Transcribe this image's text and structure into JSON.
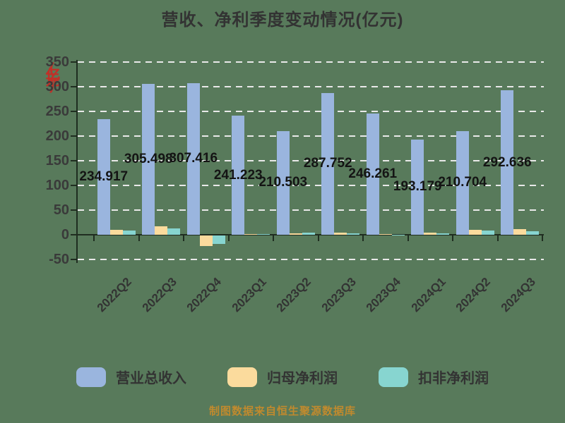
{
  "title": "营收、净利季度变动情况(亿元)",
  "y_axis": {
    "unit_label": "(亿元)",
    "unit_label_color": "#C03028",
    "tick_labels": [
      "350",
      "300",
      "250",
      "200",
      "150",
      "100",
      "50",
      "0",
      "-50"
    ]
  },
  "footer": "制图数据来自恒生聚源数据库",
  "legend": {
    "items": [
      {
        "label": "营业总收入",
        "color": "#9AB5DE"
      },
      {
        "label": "归母净利润",
        "color": "#FBDB9D"
      },
      {
        "label": "扣非净利润",
        "color": "#87D5D0"
      }
    ]
  },
  "chart_data": {
    "type": "bar",
    "title": "营收、净利季度变动情况(亿元)",
    "categories": [
      "2022Q2",
      "2022Q3",
      "2022Q4",
      "2023Q1",
      "2023Q2",
      "2023Q3",
      "2023Q4",
      "2024Q1",
      "2024Q2",
      "2024Q3"
    ],
    "series": [
      {
        "name": "营业总收入",
        "color": "#9AB5DE",
        "values": [
          234.917,
          305.498,
          307.416,
          241.223,
          210.503,
          287.752,
          246.261,
          193.179,
          210.704,
          292.636
        ],
        "data_labels": [
          "234.917",
          "305.498",
          "307.416",
          "241.223",
          "210.503",
          "287.752",
          "246.261",
          "193.179",
          "210.704",
          "292.636"
        ]
      },
      {
        "name": "归母净利润",
        "color": "#FBDB9D",
        "values": [
          10.5,
          16.5,
          -21.0,
          2.0,
          2.5,
          4.5,
          2.0,
          5.0,
          10.0,
          11.5
        ],
        "values_estimated": true
      },
      {
        "name": "扣非净利润",
        "color": "#87D5D0",
        "values": [
          9.0,
          13.0,
          -17.0,
          1.5,
          5.0,
          3.5,
          0.7,
          3.0,
          8.5,
          7.0
        ],
        "values_estimated": true
      }
    ],
    "ylim": [
      -50,
      350
    ],
    "ytick_interval": 50,
    "gridlines": {
      "values": [
        350,
        300,
        250,
        200,
        150,
        100,
        50,
        -50
      ],
      "style": "dashed",
      "color": "#E9E9E9"
    },
    "legend_position": "bottom",
    "background_color": "#587A5B"
  }
}
